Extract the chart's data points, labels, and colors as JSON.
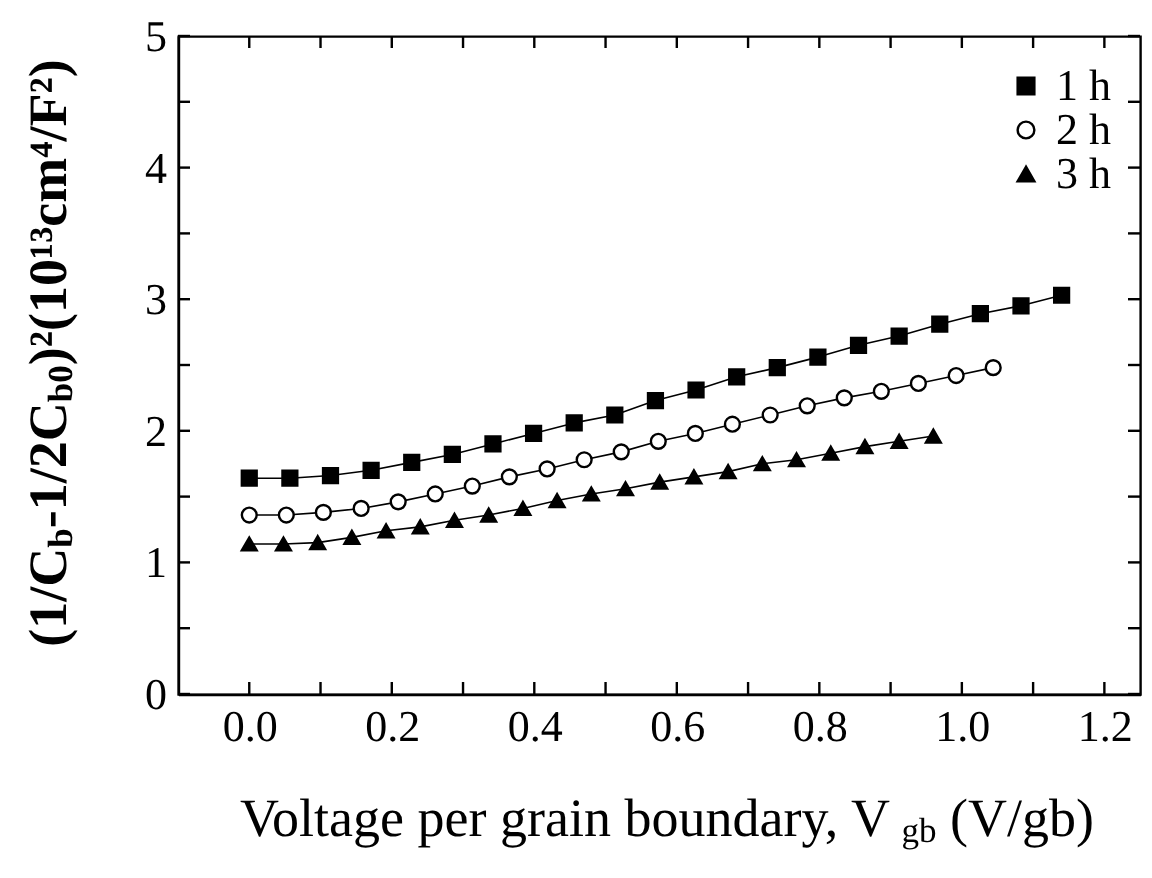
{
  "chart_data": {
    "type": "line",
    "xlabel": "Voltage per grain boundary, V$_{gb}$ (V/gb)",
    "ylabel": "(1/C$_{b}$-1/2C$_{b0}$)²(10¹³cm⁴/F²)",
    "xlim": [
      -0.1,
      1.25
    ],
    "ylim": [
      0,
      5
    ],
    "xticks": [
      {
        "value": 0,
        "label": "0.0"
      },
      {
        "value": 0.1,
        "label": null
      },
      {
        "value": 0.2,
        "label": "0.2"
      },
      {
        "value": 0.3,
        "label": null
      },
      {
        "value": 0.4,
        "label": "0.4"
      },
      {
        "value": 0.5,
        "label": null
      },
      {
        "value": 0.6,
        "label": "0.6"
      },
      {
        "value": 0.7,
        "label": null
      },
      {
        "value": 0.8,
        "label": "0.8"
      },
      {
        "value": 0.9,
        "label": null
      },
      {
        "value": 1.0,
        "label": "1.0"
      },
      {
        "value": 1.1,
        "label": null
      },
      {
        "value": 1.2,
        "label": "1.2"
      }
    ],
    "yticks": [
      0,
      {
        "value": 0.5,
        "label": null
      },
      1,
      {
        "value": 1.5,
        "label": null
      },
      2,
      {
        "value": 2.5,
        "label": null
      },
      3,
      {
        "value": 3.5,
        "label": null
      },
      4,
      {
        "value": 4.5,
        "label": null
      },
      5
    ],
    "grid": false,
    "legend": "top right",
    "line_style": "solid",
    "series": [
      {
        "name": "1 h",
        "color": "#000000",
        "marker": "square",
        "x": [
          0,
          0.057,
          0.114,
          0.171,
          0.228,
          0.285,
          0.342,
          0.399,
          0.456,
          0.513,
          0.57,
          0.627,
          0.684,
          0.741,
          0.798,
          0.855,
          0.912,
          0.969,
          1.026,
          1.083,
          1.14
        ],
        "values": [
          1.64,
          1.64,
          1.66,
          1.7,
          1.76,
          1.82,
          1.9,
          1.98,
          2.06,
          2.12,
          2.23,
          2.31,
          2.41,
          2.48,
          2.56,
          2.65,
          2.72,
          2.81,
          2.89,
          2.95,
          3.03
        ]
      },
      {
        "name": "2 h",
        "color": "#000000",
        "marker": "circle",
        "x": [
          0,
          0.052,
          0.104,
          0.157,
          0.209,
          0.261,
          0.313,
          0.365,
          0.418,
          0.47,
          0.522,
          0.574,
          0.626,
          0.678,
          0.731,
          0.783,
          0.835,
          0.887,
          0.939,
          0.992,
          1.044
        ],
        "values": [
          1.36,
          1.36,
          1.38,
          1.41,
          1.46,
          1.52,
          1.58,
          1.65,
          1.71,
          1.78,
          1.84,
          1.92,
          1.98,
          2.05,
          2.12,
          2.19,
          2.25,
          2.3,
          2.36,
          2.42,
          2.48
        ]
      },
      {
        "name": "3 h",
        "color": "#000000",
        "marker": "triangle",
        "x": [
          0,
          0.048,
          0.096,
          0.144,
          0.192,
          0.24,
          0.288,
          0.336,
          0.384,
          0.432,
          0.48,
          0.528,
          0.576,
          0.624,
          0.672,
          0.72,
          0.768,
          0.816,
          0.864,
          0.912,
          0.96
        ],
        "values": [
          1.14,
          1.14,
          1.15,
          1.19,
          1.24,
          1.27,
          1.32,
          1.36,
          1.41,
          1.47,
          1.52,
          1.56,
          1.61,
          1.65,
          1.69,
          1.75,
          1.78,
          1.83,
          1.88,
          1.92,
          1.96
        ]
      }
    ]
  }
}
